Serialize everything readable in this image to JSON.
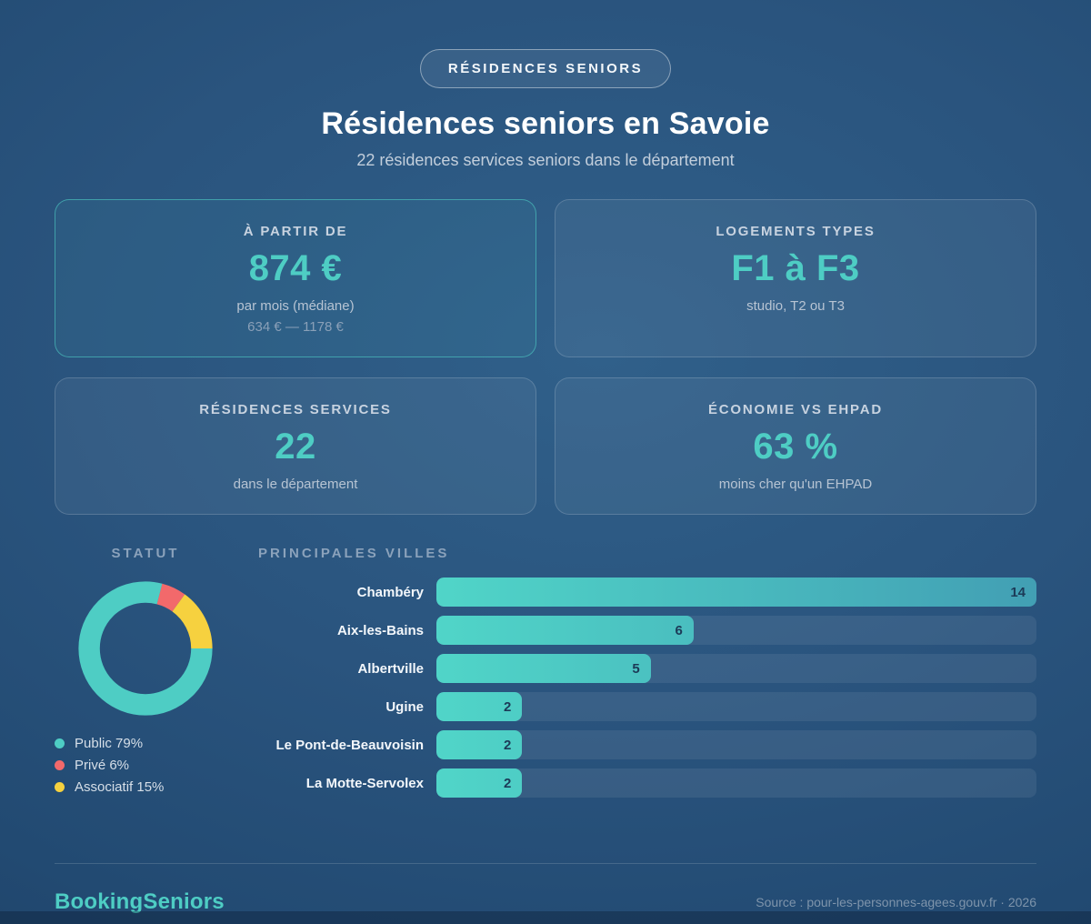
{
  "accent_color": "#4ecdc4",
  "badge": {
    "label": "RÉSIDENCES SENIORS"
  },
  "header": {
    "title": "Résidences seniors en Savoie",
    "subtitle": "22 résidences services seniors dans le département"
  },
  "cards": [
    {
      "label": "À PARTIR DE",
      "value": "874 €",
      "sub": "par mois (médiane)",
      "sub2": "634 € — 1178 €"
    },
    {
      "label": "LOGEMENTS TYPES",
      "value": "F1 à F3",
      "sub": "studio, T2 ou T3"
    },
    {
      "label": "RÉSIDENCES SERVICES",
      "value": "22",
      "sub": "dans le département"
    },
    {
      "label": "ÉCONOMIE VS EHPAD",
      "value": "63 %",
      "sub": "moins cher qu'un EHPAD"
    }
  ],
  "statut": {
    "header": "STATUT",
    "legend": [
      "Public 79%",
      "Privé 6%",
      "Associatif 15%"
    ]
  },
  "villes": {
    "header": "PRINCIPALES VILLES",
    "rows": [
      {
        "city": "Chambéry",
        "value": "14"
      },
      {
        "city": "Aix-les-Bains",
        "value": "6"
      },
      {
        "city": "Albertville",
        "value": "5"
      },
      {
        "city": "Ugine",
        "value": "2"
      },
      {
        "city": "Le Pont-de-Beauvoisin",
        "value": "2"
      },
      {
        "city": "La Motte-Servolex",
        "value": "2"
      }
    ]
  },
  "footer": {
    "brand": "BookingSeniors",
    "source": "Source : pour-les-personnes-agees.gouv.fr · 2026"
  },
  "chart_data": [
    {
      "type": "pie",
      "donut": true,
      "title": "STATUT",
      "labels": [
        "Public",
        "Privé",
        "Associatif"
      ],
      "values": [
        79,
        6,
        15
      ],
      "colors": [
        "#4ecdc4",
        "#f2696b",
        "#f6d13f"
      ],
      "legend_position": "bottom",
      "start_angle": 14.4,
      "draw_order": [
        1,
        2,
        0
      ]
    },
    {
      "type": "bar",
      "orientation": "horizontal",
      "title": "PRINCIPALES VILLES",
      "categories": [
        "Chambéry",
        "Aix-les-Bains",
        "Albertville",
        "Ugine",
        "Le Pont-de-Beauvoisin",
        "La Motte-Servolex"
      ],
      "values": [
        14,
        6,
        5,
        2,
        2,
        2
      ],
      "xlim": [
        0,
        14
      ],
      "value_labels": "inside-right",
      "bar_gradient": [
        "#50d5c8",
        "#429fb4"
      ]
    }
  ]
}
